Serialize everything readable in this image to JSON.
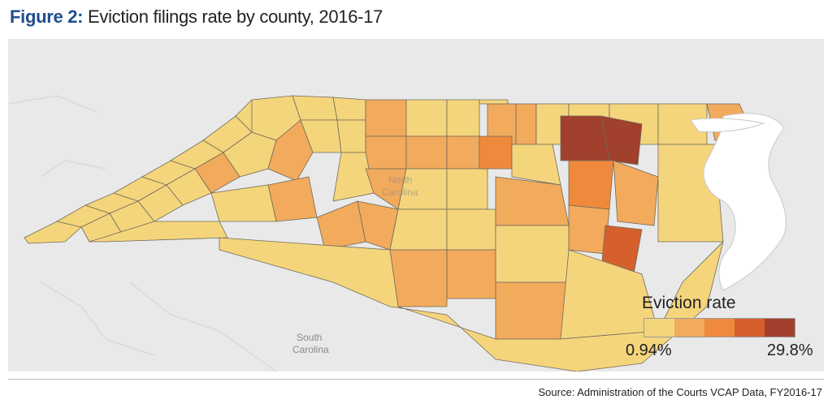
{
  "title": {
    "prefix": "Figure 2:",
    "text": "Eviction  filings rate by county, 2016-17"
  },
  "map": {
    "neighbor_label": [
      "South",
      "Carolina"
    ],
    "state_label": [
      "North",
      "Carolina"
    ],
    "colors": {
      "background": "#e9e9e9",
      "water": "#ffffff",
      "county_border": "#6f6a5c"
    },
    "county_classes": [
      "c0",
      "c0",
      "c0",
      "c0",
      "c0",
      "c0",
      "c0",
      "c0",
      "c0",
      "c0",
      "c0",
      "c1",
      "c0",
      "c0",
      "c0",
      "c0",
      "c0",
      "c1",
      "c0",
      "c0",
      "c1",
      "c0",
      "c0",
      "c1",
      "c1",
      "c1",
      "c1",
      "c0",
      "c1",
      "c0",
      "c0",
      "c0",
      "c0",
      "c1",
      "c0",
      "c1",
      "c0",
      "c0",
      "c2",
      "c0",
      "c1",
      "c0",
      "c1",
      "c0",
      "c1",
      "c0",
      "c0",
      "c1",
      "c4",
      "c4",
      "c2",
      "c1",
      "c1",
      "c3",
      "c0",
      "c1",
      "c1",
      "c1",
      "c0",
      "c0"
    ]
  },
  "legend": {
    "title": "Eviction rate",
    "min_label": "0.94%",
    "max_label": "29.8%",
    "colors": [
      "#f5d57c",
      "#f2aa5c",
      "#ef8a3c",
      "#d5602d",
      "#a0402d"
    ]
  },
  "source": "Source: Administration of the Courts VCAP Data, FY2016-17"
}
